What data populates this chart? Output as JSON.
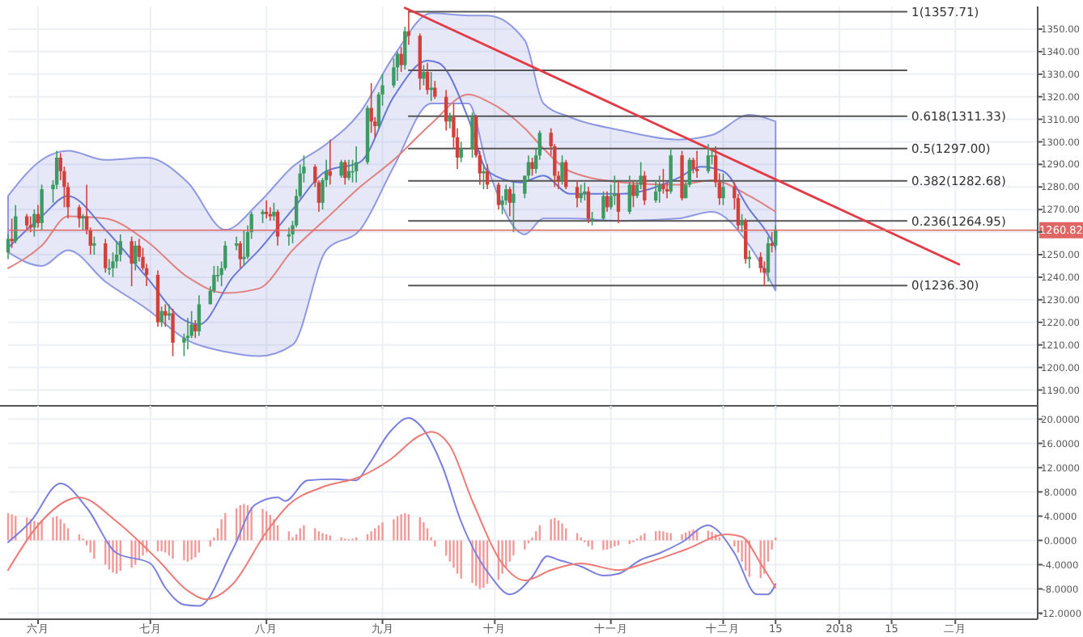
{
  "chart_data": [
    {
      "type": "candlestick",
      "tick_labels": "y",
      "grid": true,
      "xlim": [
        "2017-05-24",
        "2018-02-23"
      ],
      "ylim": [
        1183,
        1360
      ],
      "xticks": [
        {
          "value": "2017-06-01",
          "label": null
        },
        {
          "value": "2017-07-01",
          "label": null
        },
        {
          "value": "2017-08-01",
          "label": null
        },
        {
          "value": "2017-09-01",
          "label": null
        },
        {
          "value": "2017-10-01",
          "label": null
        },
        {
          "value": "2017-11-01",
          "label": null
        },
        {
          "value": "2017-12-01",
          "label": null
        },
        {
          "value": "2017-12-15",
          "label": null
        },
        {
          "value": "2018-01-01",
          "label": null
        },
        {
          "value": "2018-01-15",
          "label": null
        },
        {
          "value": "2018-02-01",
          "label": null
        }
      ],
      "yticks": [
        {
          "value": 1190,
          "label": "1190.00"
        },
        {
          "value": 1200,
          "label": "1200.00"
        },
        {
          "value": 1210,
          "label": "1210.00"
        },
        {
          "value": 1220,
          "label": "1220.00"
        },
        {
          "value": 1230,
          "label": "1230.00"
        },
        {
          "value": 1240,
          "label": "1240.00"
        },
        {
          "value": 1250,
          "label": "1250.00"
        },
        {
          "value": 1260,
          "label": null
        },
        {
          "value": 1270,
          "label": "1270.00"
        },
        {
          "value": 1280,
          "label": "1280.00"
        },
        {
          "value": 1290,
          "label": "1290.00"
        },
        {
          "value": 1300,
          "label": "1300.00"
        },
        {
          "value": 1310,
          "label": "1310.00"
        },
        {
          "value": 1320,
          "label": "1320.00"
        },
        {
          "value": 1330,
          "label": "1330.00"
        },
        {
          "value": 1340,
          "label": "1340.00"
        },
        {
          "value": 1350,
          "label": "1350.00"
        }
      ],
      "x": [
        "2017-05-24",
        "2017-05-25",
        "2017-05-26",
        "2017-05-29",
        "2017-05-30",
        "2017-05-31",
        "2017-06-01",
        "2017-06-02",
        "2017-06-05",
        "2017-06-06",
        "2017-06-07",
        "2017-06-08",
        "2017-06-09",
        "2017-06-12",
        "2017-06-13",
        "2017-06-14",
        "2017-06-15",
        "2017-06-16",
        "2017-06-19",
        "2017-06-20",
        "2017-06-21",
        "2017-06-22",
        "2017-06-23",
        "2017-06-26",
        "2017-06-27",
        "2017-06-28",
        "2017-06-29",
        "2017-06-30",
        "2017-07-03",
        "2017-07-04",
        "2017-07-05",
        "2017-07-06",
        "2017-07-07",
        "2017-07-10",
        "2017-07-11",
        "2017-07-12",
        "2017-07-13",
        "2017-07-14",
        "2017-07-17",
        "2017-07-18",
        "2017-07-19",
        "2017-07-20",
        "2017-07-21",
        "2017-07-24",
        "2017-07-25",
        "2017-07-26",
        "2017-07-27",
        "2017-07-28",
        "2017-07-31",
        "2017-08-01",
        "2017-08-02",
        "2017-08-03",
        "2017-08-04",
        "2017-08-07",
        "2017-08-08",
        "2017-08-09",
        "2017-08-10",
        "2017-08-11",
        "2017-08-14",
        "2017-08-15",
        "2017-08-16",
        "2017-08-17",
        "2017-08-18",
        "2017-08-21",
        "2017-08-22",
        "2017-08-23",
        "2017-08-24",
        "2017-08-25",
        "2017-08-28",
        "2017-08-29",
        "2017-08-30",
        "2017-08-31",
        "2017-09-01",
        "2017-09-04",
        "2017-09-05",
        "2017-09-06",
        "2017-09-07",
        "2017-09-08",
        "2017-09-11",
        "2017-09-12",
        "2017-09-13",
        "2017-09-14",
        "2017-09-15",
        "2017-09-18",
        "2017-09-19",
        "2017-09-20",
        "2017-09-21",
        "2017-09-22",
        "2017-09-25",
        "2017-09-26",
        "2017-09-27",
        "2017-09-28",
        "2017-09-29",
        "2017-10-02",
        "2017-10-03",
        "2017-10-04",
        "2017-10-05",
        "2017-10-06",
        "2017-10-09",
        "2017-10-10",
        "2017-10-11",
        "2017-10-12",
        "2017-10-13",
        "2017-10-16",
        "2017-10-17",
        "2017-10-18",
        "2017-10-19",
        "2017-10-20",
        "2017-10-23",
        "2017-10-24",
        "2017-10-25",
        "2017-10-26",
        "2017-10-27",
        "2017-10-30",
        "2017-10-31",
        "2017-11-01",
        "2017-11-02",
        "2017-11-03",
        "2017-11-06",
        "2017-11-07",
        "2017-11-08",
        "2017-11-09",
        "2017-11-10",
        "2017-11-13",
        "2017-11-14",
        "2017-11-15",
        "2017-11-16",
        "2017-11-17",
        "2017-11-20",
        "2017-11-21",
        "2017-11-22",
        "2017-11-23",
        "2017-11-24",
        "2017-11-27",
        "2017-11-28",
        "2017-11-29",
        "2017-11-30",
        "2017-12-01",
        "2017-12-04",
        "2017-12-05",
        "2017-12-06",
        "2017-12-07",
        "2017-12-08",
        "2017-12-11",
        "2017-12-12",
        "2017-12-13",
        "2017-12-14",
        "2017-12-15"
      ],
      "ohlc": [
        [
          1251,
          1259,
          1248,
          1257
        ],
        [
          1257,
          1266,
          1253,
          1256
        ],
        [
          1256,
          1272,
          1255,
          1267
        ],
        [
          1267,
          1268,
          1261,
          1263
        ],
        [
          1263,
          1267,
          1260,
          1262
        ],
        [
          1262,
          1270,
          1258,
          1268
        ],
        [
          1268,
          1272,
          1262,
          1264
        ],
        [
          1264,
          1281,
          1261,
          1279
        ],
        [
          1279,
          1283,
          1273,
          1281
        ],
        [
          1281,
          1296,
          1279,
          1293
        ],
        [
          1293,
          1295,
          1283,
          1287
        ],
        [
          1287,
          1289,
          1271,
          1280
        ],
        [
          1280,
          1282,
          1266,
          1271
        ],
        [
          1271,
          1272,
          1262,
          1266
        ],
        [
          1266,
          1268,
          1261,
          1267
        ],
        [
          1267,
          1281,
          1259,
          1261
        ],
        [
          1261,
          1262,
          1250,
          1254
        ],
        [
          1254,
          1258,
          1250,
          1255
        ],
        [
          1255,
          1257,
          1242,
          1244
        ],
        [
          1244,
          1248,
          1241,
          1244
        ],
        [
          1244,
          1251,
          1240,
          1247
        ],
        [
          1247,
          1256,
          1244,
          1250
        ],
        [
          1250,
          1259,
          1247,
          1256
        ],
        [
          1256,
          1258,
          1236,
          1246
        ],
        [
          1246,
          1256,
          1243,
          1254
        ],
        [
          1254,
          1257,
          1247,
          1249
        ],
        [
          1249,
          1253,
          1243,
          1244
        ],
        [
          1244,
          1246,
          1236,
          1241
        ],
        [
          1241,
          1243,
          1218,
          1220
        ],
        [
          1220,
          1227,
          1218,
          1225
        ],
        [
          1225,
          1228,
          1218,
          1223
        ],
        [
          1223,
          1228,
          1221,
          1224
        ],
        [
          1224,
          1226,
          1205,
          1211
        ],
        [
          1211,
          1215,
          1205,
          1213
        ],
        [
          1213,
          1222,
          1208,
          1214
        ],
        [
          1214,
          1225,
          1213,
          1219
        ],
        [
          1219,
          1221,
          1213,
          1216
        ],
        [
          1216,
          1232,
          1214,
          1228
        ],
        [
          1228,
          1236,
          1228,
          1234
        ],
        [
          1234,
          1245,
          1233,
          1241
        ],
        [
          1241,
          1245,
          1238,
          1241
        ],
        [
          1241,
          1247,
          1236,
          1244
        ],
        [
          1244,
          1256,
          1243,
          1254
        ],
        [
          1254,
          1258,
          1252,
          1255
        ],
        [
          1255,
          1256,
          1244,
          1248
        ],
        [
          1248,
          1261,
          1245,
          1249
        ],
        [
          1249,
          1263,
          1248,
          1260
        ],
        [
          1260,
          1269,
          1257,
          1268
        ],
        [
          1268,
          1270,
          1264,
          1269
        ],
        [
          1269,
          1274,
          1266,
          1268
        ],
        [
          1268,
          1271,
          1265,
          1267
        ],
        [
          1267,
          1273,
          1265,
          1269
        ],
        [
          1269,
          1270,
          1254,
          1258
        ],
        [
          1258,
          1262,
          1254,
          1259
        ],
        [
          1259,
          1265,
          1255,
          1263
        ],
        [
          1263,
          1279,
          1262,
          1276
        ],
        [
          1276,
          1290,
          1275,
          1286
        ],
        [
          1286,
          1294,
          1282,
          1289
        ],
        [
          1289,
          1290,
          1280,
          1282
        ],
        [
          1282,
          1283,
          1269,
          1273
        ],
        [
          1273,
          1284,
          1270,
          1283
        ],
        [
          1283,
          1292,
          1280,
          1287
        ],
        [
          1287,
          1301,
          1281,
          1285
        ],
        [
          1285,
          1292,
          1284,
          1291
        ],
        [
          1291,
          1292,
          1281,
          1284
        ],
        [
          1284,
          1292,
          1283,
          1287
        ],
        [
          1287,
          1292,
          1282,
          1287
        ],
        [
          1287,
          1298,
          1282,
          1291
        ],
        [
          1291,
          1316,
          1290,
          1315
        ],
        [
          1315,
          1326,
          1304,
          1309
        ],
        [
          1309,
          1311,
          1302,
          1307
        ],
        [
          1307,
          1322,
          1306,
          1321
        ],
        [
          1321,
          1330,
          1316,
          1325
        ],
        [
          1325,
          1337,
          1324,
          1333
        ],
        [
          1333,
          1340,
          1327,
          1339
        ],
        [
          1339,
          1342,
          1331,
          1334
        ],
        [
          1334,
          1351,
          1332,
          1349
        ],
        [
          1349,
          1358,
          1343,
          1347
        ],
        [
          1347,
          1348,
          1323,
          1328
        ],
        [
          1328,
          1334,
          1325,
          1331
        ],
        [
          1331,
          1335,
          1321,
          1323
        ],
        [
          1323,
          1331,
          1318,
          1324
        ],
        [
          1324,
          1327,
          1319,
          1320
        ],
        [
          1320,
          1323,
          1305,
          1309
        ],
        [
          1309,
          1313,
          1306,
          1311
        ],
        [
          1311,
          1317,
          1297,
          1302
        ],
        [
          1302,
          1306,
          1288,
          1293
        ],
        [
          1293,
          1300,
          1291,
          1297
        ],
        [
          1297,
          1313,
          1293,
          1311
        ],
        [
          1311,
          1312,
          1293,
          1294
        ],
        [
          1294,
          1296,
          1281,
          1286
        ],
        [
          1286,
          1290,
          1279,
          1287
        ],
        [
          1287,
          1290,
          1279,
          1281
        ],
        [
          1281,
          1282,
          1270,
          1272
        ],
        [
          1272,
          1276,
          1268,
          1274
        ],
        [
          1274,
          1281,
          1272,
          1279
        ],
        [
          1279,
          1280,
          1267,
          1273
        ],
        [
          1273,
          1282,
          1260,
          1277
        ],
        [
          1277,
          1285,
          1275,
          1285
        ],
        [
          1285,
          1294,
          1283,
          1291
        ],
        [
          1291,
          1293,
          1285,
          1288
        ],
        [
          1288,
          1297,
          1286,
          1294
        ],
        [
          1294,
          1305,
          1292,
          1304
        ],
        [
          1304,
          1306,
          1294,
          1298
        ],
        [
          1298,
          1299,
          1280,
          1285
        ],
        [
          1285,
          1287,
          1279,
          1283
        ],
        [
          1283,
          1294,
          1281,
          1291
        ],
        [
          1291,
          1292,
          1279,
          1280
        ],
        [
          1280,
          1283,
          1271,
          1275
        ],
        [
          1275,
          1281,
          1273,
          1277
        ],
        [
          1277,
          1282,
          1274,
          1278
        ],
        [
          1278,
          1280,
          1264,
          1266
        ],
        [
          1266,
          1269,
          1263,
          1266
        ],
        [
          1266,
          1278,
          1265,
          1276
        ],
        [
          1276,
          1278,
          1269,
          1271
        ],
        [
          1271,
          1281,
          1270,
          1276
        ],
        [
          1276,
          1285,
          1272,
          1277
        ],
        [
          1277,
          1282,
          1264,
          1269
        ],
        [
          1269,
          1285,
          1268,
          1281
        ],
        [
          1281,
          1283,
          1271,
          1276
        ],
        [
          1276,
          1283,
          1275,
          1281
        ],
        [
          1281,
          1291,
          1279,
          1285
        ],
        [
          1285,
          1287,
          1272,
          1274
        ],
        [
          1274,
          1283,
          1273,
          1278
        ],
        [
          1278,
          1285,
          1273,
          1281
        ],
        [
          1281,
          1288,
          1277,
          1279
        ],
        [
          1279,
          1282,
          1275,
          1278
        ],
        [
          1278,
          1297,
          1277,
          1294
        ],
        [
          1294,
          1296,
          1274,
          1275
        ],
        [
          1275,
          1283,
          1275,
          1281
        ],
        [
          1281,
          1293,
          1280,
          1292
        ],
        [
          1292,
          1293,
          1286,
          1288
        ],
        [
          1288,
          1296,
          1284,
          1287
        ],
        [
          1287,
          1299,
          1286,
          1294
        ],
        [
          1294,
          1296,
          1290,
          1294
        ],
        [
          1294,
          1298,
          1280,
          1282
        ],
        [
          1282,
          1286,
          1272,
          1275
        ],
        [
          1275,
          1286,
          1272,
          1280
        ],
        [
          1280,
          1282,
          1270,
          1275
        ],
        [
          1275,
          1277,
          1261,
          1263
        ],
        [
          1263,
          1268,
          1260,
          1265
        ],
        [
          1265,
          1266,
          1246,
          1248
        ],
        [
          1248,
          1252,
          1244,
          1249
        ],
        [
          1249,
          1251,
          1242,
          1244
        ],
        [
          1244,
          1247,
          1236,
          1242
        ],
        [
          1242,
          1258,
          1238,
          1255
        ],
        [
          1255,
          1260,
          1251,
          1254
        ],
        [
          1254,
          1263,
          1252,
          1260.82
        ]
      ],
      "series": [
        {
          "type": "line",
          "color": "#e08080",
          "x": [
            "2017-05-24",
            "2017-06-02",
            "2017-06-09",
            "2017-06-19",
            "2017-06-30",
            "2017-07-11",
            "2017-07-21",
            "2017-07-30",
            "2017-08-08",
            "2017-08-17",
            "2017-08-26",
            "2017-09-04",
            "2017-09-14",
            "2017-09-24",
            "2017-09-29",
            "2017-10-09",
            "2017-10-14",
            "2017-10-21",
            "2017-11-04",
            "2017-11-19",
            "2017-11-28",
            "2017-12-08",
            "2017-12-15"
          ],
          "values": [
            1244,
            1254,
            1267,
            1266,
            1256,
            1240,
            1233,
            1235,
            1252,
            1266,
            1280,
            1292,
            1308,
            1321,
            1318,
            1306,
            1297,
            1287,
            1282,
            1281,
            1283,
            1276,
            1269
          ],
          "lower": [
            1251,
            1245,
            1252,
            1238,
            1226,
            1212,
            1207,
            1205,
            1210,
            1252,
            1261,
            1289,
            1317,
            1317,
            1289,
            1259,
            1266,
            1266,
            1265,
            1266,
            1269,
            1254,
            1234
          ],
          "upper": [
            1276,
            1292,
            1296,
            1292,
            1293,
            1282,
            1261,
            1273,
            1289,
            1299,
            1313,
            1338,
            1357,
            1356,
            1356,
            1345,
            1317,
            1311,
            1305,
            1301,
            1303,
            1312,
            1309
          ]
        },
        {
          "type": "line",
          "color": "#6a78d6",
          "x": [
            "2017-05-24",
            "2017-06-02",
            "2017-06-09",
            "2017-06-19",
            "2017-06-30",
            "2017-07-10",
            "2017-07-14",
            "2017-07-23",
            "2017-07-30",
            "2017-08-08",
            "2017-08-17",
            "2017-08-26",
            "2017-09-04",
            "2017-09-13",
            "2017-09-16",
            "2017-09-24",
            "2017-09-29",
            "2017-10-08",
            "2017-10-14",
            "2017-10-21",
            "2017-11-04",
            "2017-11-19",
            "2017-11-25",
            "2017-12-01",
            "2017-12-08",
            "2017-12-13",
            "2017-12-15"
          ],
          "values": [
            1253,
            1267,
            1276,
            1261,
            1240,
            1221,
            1219,
            1240,
            1252,
            1270,
            1287,
            1291,
            1320,
            1336,
            1335,
            1310,
            1287,
            1282,
            1285,
            1277,
            1277,
            1284,
            1289,
            1287,
            1270,
            1259,
            1253
          ]
        },
        {
          "type": "line",
          "color": "#555555",
          "name": "1(1357.71)",
          "x": [
            "2017-09-08",
            "2018-01-19"
          ],
          "values": [
            1357.71,
            1357.71
          ]
        },
        {
          "type": "line",
          "color": "#555555",
          "x": [
            "2017-09-08",
            "2018-01-19"
          ],
          "values": [
            1331.7,
            1331.7
          ]
        },
        {
          "type": "line",
          "color": "#555555",
          "name": "0.618(1311.33)",
          "x": [
            "2017-09-08",
            "2018-01-19"
          ],
          "values": [
            1311.33,
            1311.33
          ]
        },
        {
          "type": "line",
          "color": "#555555",
          "name": "0.5(1297.00)",
          "x": [
            "2017-09-08",
            "2018-01-19"
          ],
          "values": [
            1297.0,
            1297.0
          ]
        },
        {
          "type": "line",
          "color": "#555555",
          "name": "0.382(1282.68)",
          "x": [
            "2017-09-08",
            "2018-01-19"
          ],
          "values": [
            1282.68,
            1282.68
          ]
        },
        {
          "type": "line",
          "color": "#555555",
          "name": "0.236(1264.95)",
          "x": [
            "2017-09-08",
            "2018-01-19"
          ],
          "values": [
            1264.95,
            1264.95
          ]
        },
        {
          "type": "line",
          "color": "#555555",
          "name": "0(1236.30)",
          "x": [
            "2017-09-08",
            "2018-01-19"
          ],
          "values": [
            1236.3,
            1236.3
          ]
        },
        {
          "type": "line",
          "color": "#e53945",
          "x": [
            "2017-09-07",
            "2018-02-02"
          ],
          "values": [
            1359.4,
            1245.7
          ]
        }
      ],
      "ref_lines": [
        {
          "axis": "y",
          "value": 1260.82,
          "label": "1260.82",
          "color": "#e06666"
        }
      ]
    },
    {
      "type": "bar",
      "grid": true,
      "xlim": [
        "2017-05-24",
        "2018-02-23"
      ],
      "ylim": [
        -13,
        22.2
      ],
      "xticks": [
        {
          "value": "2017-06-01",
          "label": "六月"
        },
        {
          "value": "2017-07-01",
          "label": "七月"
        },
        {
          "value": "2017-08-01",
          "label": "八月"
        },
        {
          "value": "2017-09-01",
          "label": "九月"
        },
        {
          "value": "2017-10-01",
          "label": "十月"
        },
        {
          "value": "2017-11-01",
          "label": "十一月"
        },
        {
          "value": "2017-12-01",
          "label": "十二月"
        },
        {
          "value": "2017-12-15",
          "label": "15"
        },
        {
          "value": "2018-01-01",
          "label": "2018"
        },
        {
          "value": "2018-01-15",
          "label": "15"
        },
        {
          "value": "2018-02-01",
          "label": "二月"
        }
      ],
      "yticks": [
        {
          "value": -12,
          "label": "-12.0000"
        },
        {
          "value": -8,
          "label": "-8.0000"
        },
        {
          "value": -4,
          "label": "-4.0000"
        },
        {
          "value": 0,
          "label": "0.0000"
        },
        {
          "value": 4,
          "label": "4.0000"
        },
        {
          "value": 8,
          "label": "8.0000"
        },
        {
          "value": 12,
          "label": "12.0000"
        },
        {
          "value": 16,
          "label": "16.0000"
        },
        {
          "value": 20,
          "label": "20.0000"
        }
      ],
      "x": [
        "2017-05-24",
        "2017-05-25",
        "2017-05-26",
        "2017-05-29",
        "2017-05-30",
        "2017-05-31",
        "2017-06-01",
        "2017-06-02",
        "2017-06-05",
        "2017-06-06",
        "2017-06-07",
        "2017-06-08",
        "2017-06-09",
        "2017-06-12",
        "2017-06-13",
        "2017-06-14",
        "2017-06-15",
        "2017-06-16",
        "2017-06-19",
        "2017-06-20",
        "2017-06-21",
        "2017-06-22",
        "2017-06-23",
        "2017-06-26",
        "2017-06-27",
        "2017-06-28",
        "2017-06-29",
        "2017-06-30",
        "2017-07-03",
        "2017-07-04",
        "2017-07-05",
        "2017-07-06",
        "2017-07-07",
        "2017-07-10",
        "2017-07-11",
        "2017-07-12",
        "2017-07-13",
        "2017-07-14",
        "2017-07-17",
        "2017-07-18",
        "2017-07-19",
        "2017-07-20",
        "2017-07-21",
        "2017-07-24",
        "2017-07-25",
        "2017-07-26",
        "2017-07-27",
        "2017-07-28",
        "2017-07-31",
        "2017-08-01",
        "2017-08-02",
        "2017-08-03",
        "2017-08-04",
        "2017-08-07",
        "2017-08-08",
        "2017-08-09",
        "2017-08-10",
        "2017-08-11",
        "2017-08-14",
        "2017-08-15",
        "2017-08-16",
        "2017-08-17",
        "2017-08-18",
        "2017-08-21",
        "2017-08-22",
        "2017-08-23",
        "2017-08-24",
        "2017-08-25",
        "2017-08-28",
        "2017-08-29",
        "2017-08-30",
        "2017-08-31",
        "2017-09-01",
        "2017-09-04",
        "2017-09-05",
        "2017-09-06",
        "2017-09-07",
        "2017-09-08",
        "2017-09-11",
        "2017-09-12",
        "2017-09-13",
        "2017-09-14",
        "2017-09-15",
        "2017-09-18",
        "2017-09-19",
        "2017-09-20",
        "2017-09-21",
        "2017-09-22",
        "2017-09-25",
        "2017-09-26",
        "2017-09-27",
        "2017-09-28",
        "2017-09-29",
        "2017-10-02",
        "2017-10-03",
        "2017-10-04",
        "2017-10-05",
        "2017-10-06",
        "2017-10-09",
        "2017-10-10",
        "2017-10-11",
        "2017-10-12",
        "2017-10-13",
        "2017-10-16",
        "2017-10-17",
        "2017-10-18",
        "2017-10-19",
        "2017-10-20",
        "2017-10-23",
        "2017-10-24",
        "2017-10-25",
        "2017-10-26",
        "2017-10-27",
        "2017-10-30",
        "2017-10-31",
        "2017-11-01",
        "2017-11-02",
        "2017-11-03",
        "2017-11-06",
        "2017-11-07",
        "2017-11-08",
        "2017-11-09",
        "2017-11-10",
        "2017-11-13",
        "2017-11-14",
        "2017-11-15",
        "2017-11-16",
        "2017-11-17",
        "2017-11-20",
        "2017-11-21",
        "2017-11-22",
        "2017-11-23",
        "2017-11-24",
        "2017-11-27",
        "2017-11-28",
        "2017-11-29",
        "2017-11-30",
        "2017-12-01",
        "2017-12-04",
        "2017-12-05",
        "2017-12-06",
        "2017-12-07",
        "2017-12-08",
        "2017-12-11",
        "2017-12-12",
        "2017-12-13",
        "2017-12-14",
        "2017-12-15"
      ],
      "series": [
        {
          "type": "bar",
          "color": "#f19a9a",
          "values": [
            4.5,
            4.3,
            4.0,
            3.8,
            3.5,
            3.2,
            3.0,
            3.4,
            3.8,
            4.0,
            3.5,
            2.8,
            2.0,
            1.0,
            0.3,
            -0.8,
            -2.0,
            -3.0,
            -4.0,
            -4.8,
            -5.3,
            -5.5,
            -5.0,
            -4.5,
            -4.0,
            -3.2,
            -2.5,
            -2.0,
            -1.8,
            -1.8,
            -2.0,
            -2.5,
            -3.0,
            -3.3,
            -3.5,
            -3.2,
            -2.8,
            -2.0,
            -1.0,
            0.5,
            2.0,
            3.5,
            4.5,
            5.3,
            5.8,
            6.0,
            5.8,
            5.5,
            5.2,
            4.8,
            4.2,
            3.5,
            2.5,
            1.5,
            0.5,
            1.0,
            2.0,
            2.5,
            2.0,
            1.5,
            1.2,
            1.0,
            0.8,
            0.5,
            0.3,
            0.2,
            0.3,
            0.5,
            1.0,
            1.5,
            2.0,
            2.5,
            3.0,
            3.5,
            4.0,
            4.3,
            4.5,
            4.3,
            3.8,
            3.0,
            2.0,
            0.5,
            -1.0,
            -2.5,
            -3.5,
            -4.5,
            -5.5,
            -6.3,
            -7.0,
            -7.5,
            -8.0,
            -7.8,
            -7.2,
            -6.5,
            -5.5,
            -4.5,
            -3.5,
            -2.5,
            -1.5,
            -0.5,
            0.5,
            1.5,
            2.5,
            3.5,
            3.7,
            3.3,
            2.8,
            2.0,
            1.2,
            0.5,
            -0.3,
            -1.0,
            -1.5,
            -1.6,
            -1.5,
            -1.3,
            -1.0,
            -0.8,
            -0.6,
            -0.3,
            0.3,
            0.8,
            1.2,
            1.5,
            1.6,
            1.5,
            1.3,
            1.2,
            1.0,
            1.3,
            1.6,
            1.8,
            1.7,
            1.6,
            1.4,
            1.0,
            0.5,
            0.0,
            -1.0,
            -2.0,
            -3.5,
            -5.0,
            -6.0,
            -6.2,
            -5.5,
            -3.5,
            -1.5,
            0.5
          ]
        },
        {
          "type": "line",
          "color": "#7b7fe0",
          "x": [
            "2017-05-24",
            "2017-05-30",
            "2017-06-07",
            "2017-06-14",
            "2017-06-22",
            "2017-07-01",
            "2017-07-05",
            "2017-07-10",
            "2017-07-14",
            "2017-07-23",
            "2017-07-29",
            "2017-08-04",
            "2017-08-06",
            "2017-08-12",
            "2017-08-19",
            "2017-08-25",
            "2017-08-28",
            "2017-09-03",
            "2017-09-08",
            "2017-09-11",
            "2017-09-17",
            "2017-09-22",
            "2017-09-30",
            "2017-10-05",
            "2017-10-11",
            "2017-10-15",
            "2017-10-18",
            "2017-10-24",
            "2017-10-30",
            "2017-11-03",
            "2017-11-09",
            "2017-11-14",
            "2017-11-20",
            "2017-11-27",
            "2017-11-29",
            "2017-12-04",
            "2017-12-10",
            "2017-12-13",
            "2017-12-15"
          ],
          "values": [
            -0.3,
            3.1,
            9.4,
            5.4,
            -2.1,
            -3.8,
            -7.8,
            -10.6,
            -10.8,
            -1.5,
            5.9,
            7.1,
            6.5,
            9.9,
            10.1,
            9.9,
            12.2,
            17.9,
            20.2,
            19,
            12.2,
            3.1,
            -6,
            -8.9,
            -6,
            -2.6,
            -3.2,
            -4.3,
            -5.8,
            -5.5,
            -3.2,
            -2.1,
            -0.3,
            2.5,
            1.9,
            -2.1,
            -8.9,
            -8.9,
            -7.2
          ]
        },
        {
          "type": "line",
          "color": "#ec7b76",
          "x": [
            "2017-05-24",
            "2017-06-01",
            "2017-06-12",
            "2017-06-22",
            "2017-07-03",
            "2017-07-11",
            "2017-07-16",
            "2017-07-23",
            "2017-08-01",
            "2017-08-07",
            "2017-08-16",
            "2017-08-26",
            "2017-09-03",
            "2017-09-11",
            "2017-09-14",
            "2017-09-19",
            "2017-09-25",
            "2017-10-03",
            "2017-10-09",
            "2017-10-16",
            "2017-10-24",
            "2017-11-03",
            "2017-11-10",
            "2017-11-21",
            "2017-12-02",
            "2017-12-06",
            "2017-12-11",
            "2017-12-15"
          ],
          "values": [
            -4.9,
            2.5,
            7.1,
            3.1,
            -3.2,
            -8.3,
            -9.7,
            -7.2,
            1.4,
            5.9,
            8.8,
            10.5,
            13.3,
            17.3,
            17.9,
            15.6,
            6.5,
            -3.8,
            -6.6,
            -4.9,
            -3.8,
            -4.9,
            -3.8,
            -1.5,
            1.0,
            0.6,
            -3.8,
            -7.8
          ]
        }
      ]
    }
  ]
}
